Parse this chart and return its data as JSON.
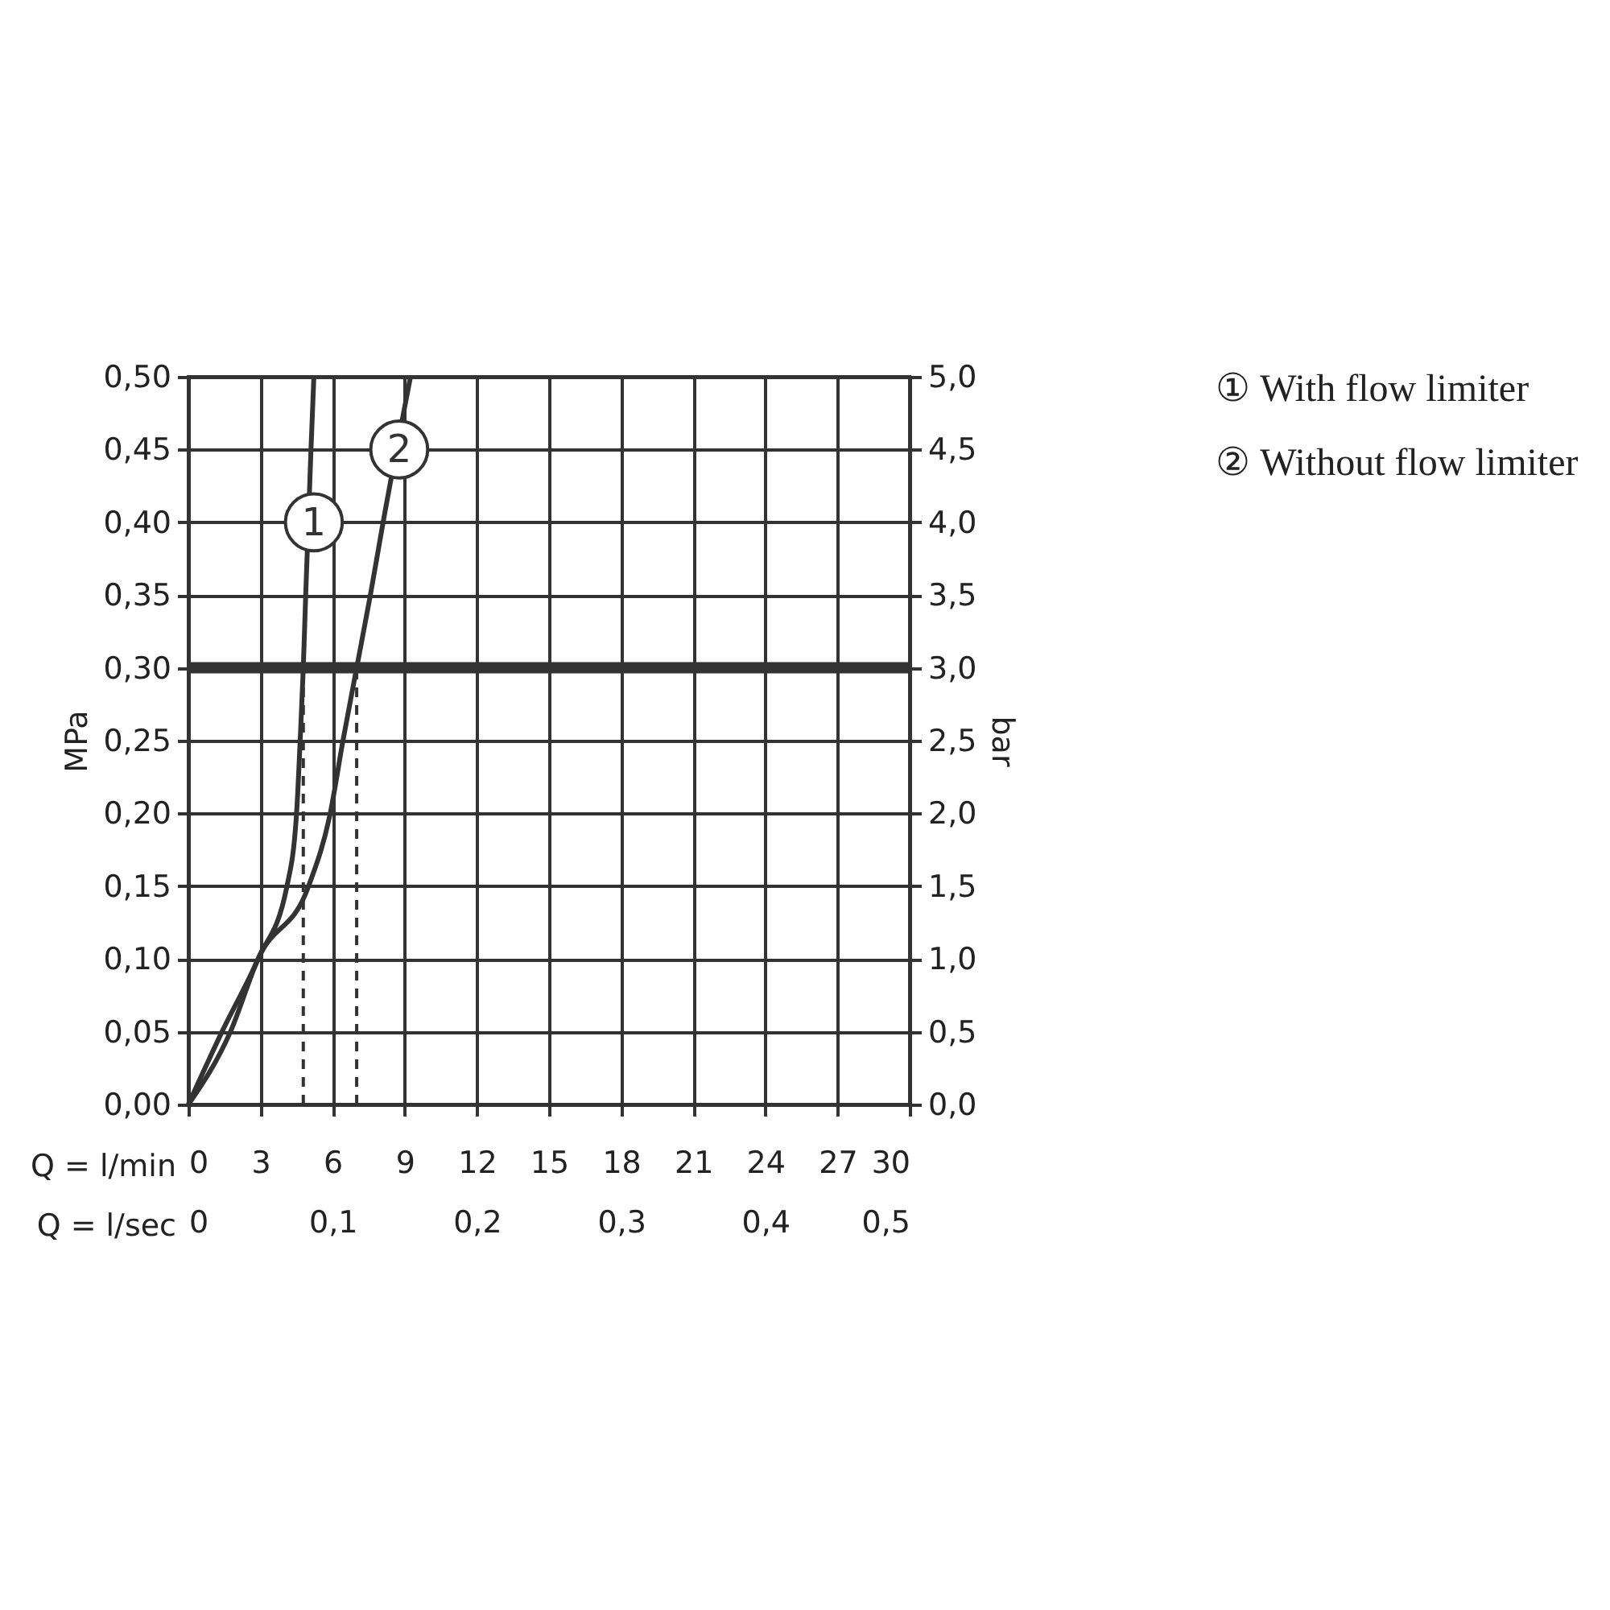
{
  "chart_data": {
    "type": "line",
    "xlabel": "Q = l/min",
    "x2label": "Q = l/sec",
    "ylabel": "MPa",
    "y2label": "bar",
    "xlim": [
      0,
      30
    ],
    "xticks": [
      0,
      3,
      6,
      9,
      12,
      15,
      18,
      21,
      24,
      27,
      30
    ],
    "x2lim": [
      0,
      0.5
    ],
    "x2ticks": [
      0,
      {
        "value": 0.1,
        "label": "0,1"
      },
      {
        "value": 0.2,
        "label": "0,2"
      },
      {
        "value": 0.3,
        "label": "0,3"
      },
      {
        "value": 0.4,
        "label": "0,4"
      },
      {
        "value": 0.5,
        "label": "0,5"
      }
    ],
    "ylim": [
      0,
      0.5
    ],
    "yticks": [
      {
        "value": 0,
        "label": "0,00"
      },
      {
        "value": 0.05,
        "label": "0,05"
      },
      {
        "value": 0.1,
        "label": "0,10"
      },
      {
        "value": 0.15,
        "label": "0,15"
      },
      {
        "value": 0.2,
        "label": "0,20"
      },
      {
        "value": 0.25,
        "label": "0,25"
      },
      {
        "value": 0.3,
        "label": "0,30"
      },
      {
        "value": 0.35,
        "label": "0,35"
      },
      {
        "value": 0.4,
        "label": "0,40"
      },
      {
        "value": 0.45,
        "label": "0,45"
      },
      {
        "value": 0.5,
        "label": "0,50"
      }
    ],
    "y2lim": [
      0,
      5
    ],
    "y2ticks": [
      {
        "value": 0,
        "label": "0,0"
      },
      {
        "value": 0.5,
        "label": "0,5"
      },
      {
        "value": 1,
        "label": "1,0"
      },
      {
        "value": 1.5,
        "label": "1,5"
      },
      {
        "value": 2,
        "label": "2,0"
      },
      {
        "value": 2.5,
        "label": "2,5"
      },
      {
        "value": 3,
        "label": "3,0"
      },
      {
        "value": 3.5,
        "label": "3,5"
      },
      {
        "value": 4,
        "label": "4,0"
      },
      {
        "value": 4.5,
        "label": "4,5"
      },
      {
        "value": 5,
        "label": "5,0"
      }
    ],
    "grid": true,
    "legend": "right",
    "line_style": "solid",
    "series": [
      {
        "name": "① With flow limiter",
        "color": "#333333",
        "x": [
          0,
          1.4,
          2.9,
          4.1,
          4.5,
          4.65,
          4.78,
          4.88,
          5.1,
          5.22
        ],
        "values": [
          0,
          0.05,
          0.1,
          0.15,
          0.2,
          0.25,
          0.3,
          0.35,
          0.45,
          0.5
        ]
      },
      {
        "name": "② Without flow limiter",
        "color": "#333333",
        "x": [
          0,
          1.75,
          2.9,
          5.0,
          5.9,
          6.43,
          7.0,
          7.57,
          8.1,
          9.24
        ],
        "values": [
          0,
          0.05,
          0.1,
          0.15,
          0.2,
          0.25,
          0.3,
          0.35,
          0.4,
          0.5
        ]
      },
      {
        "color": "#333333",
        "line_style": "dashed",
        "x": [
          4.78,
          4.78
        ],
        "values": [
          0,
          0.3
        ]
      },
      {
        "color": "#333333",
        "line_style": "dashed",
        "x": [
          7.0,
          7.0
        ],
        "values": [
          0,
          0.3
        ]
      }
    ],
    "ref_lines": [
      {
        "axis": "y",
        "value": 0.3,
        "color": "#333333"
      }
    ],
    "annotations": [
      {
        "text": "1",
        "x": 5.22,
        "y": 0.4
      },
      {
        "text": "2",
        "x": 8.77,
        "y": 0.45
      }
    ]
  }
}
